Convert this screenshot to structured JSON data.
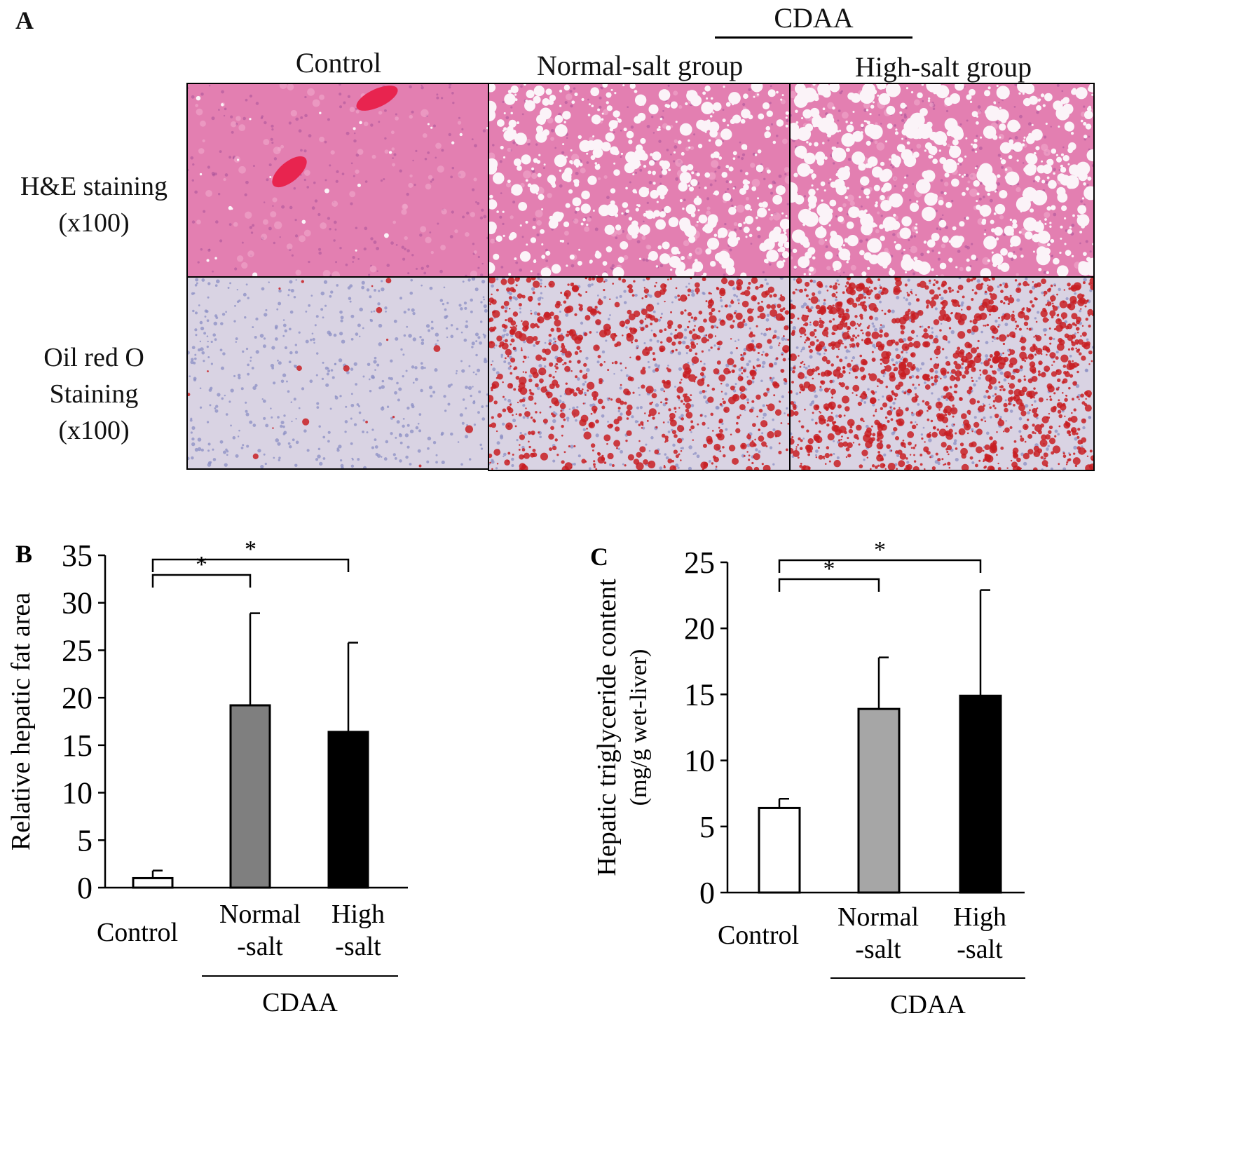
{
  "panel_a": {
    "label": "A",
    "group_label": "CDAA",
    "columns": [
      "Control",
      "Normal-salt  group",
      "High-salt  group"
    ],
    "rows": [
      {
        "line1": "H&E staining",
        "line2": "(x100)",
        "line3": ""
      },
      {
        "line1": "Oil red O",
        "line2": "Staining",
        "line3": "(x100)"
      }
    ],
    "colors": {
      "he_base": "#e37fb1",
      "he_vacuole": "#fbf3f8",
      "he_vessel": "#e8244f",
      "oro_base": "#d9d3e3",
      "oro_nuclei": "#8b8fc4",
      "oro_lipid": "#c81e23"
    }
  },
  "chart_data": [
    {
      "panel_label": "B",
      "type": "bar",
      "categories": [
        {
          "line1": "Control",
          "line2": ""
        },
        {
          "line1": "Normal",
          "line2": "-salt"
        },
        {
          "line1": "High",
          "line2": "-salt"
        }
      ],
      "values": [
        1.0,
        19.2,
        16.4
      ],
      "errors": [
        0.8,
        9.7,
        9.4
      ],
      "bar_colors": [
        "#ffffff",
        "#7f7f7f",
        "#000000"
      ],
      "ylabel": "Relative hepatic fat area",
      "ylabel2": "",
      "ylim": [
        0,
        35
      ],
      "yticks": [
        0,
        5,
        10,
        15,
        20,
        25,
        30,
        35
      ],
      "group_label": "CDAA",
      "significance": [
        {
          "from": 0,
          "to": 1,
          "label": "*"
        },
        {
          "from": 0,
          "to": 2,
          "label": "*"
        }
      ]
    },
    {
      "panel_label": "C",
      "type": "bar",
      "categories": [
        {
          "line1": "Control",
          "line2": ""
        },
        {
          "line1": "Normal",
          "line2": "-salt"
        },
        {
          "line1": "High",
          "line2": "-salt"
        }
      ],
      "values": [
        6.4,
        13.9,
        14.9
      ],
      "errors": [
        0.7,
        3.9,
        8.0
      ],
      "bar_colors": [
        "#ffffff",
        "#a6a6a6",
        "#000000"
      ],
      "ylabel": "Hepatic triglyceride content",
      "ylabel2": "(mg/g wet-liver)",
      "ylim": [
        0,
        25
      ],
      "yticks": [
        0,
        5,
        10,
        15,
        20,
        25
      ],
      "group_label": "CDAA",
      "significance": [
        {
          "from": 0,
          "to": 1,
          "label": "*"
        },
        {
          "from": 0,
          "to": 2,
          "label": "*"
        }
      ]
    }
  ]
}
